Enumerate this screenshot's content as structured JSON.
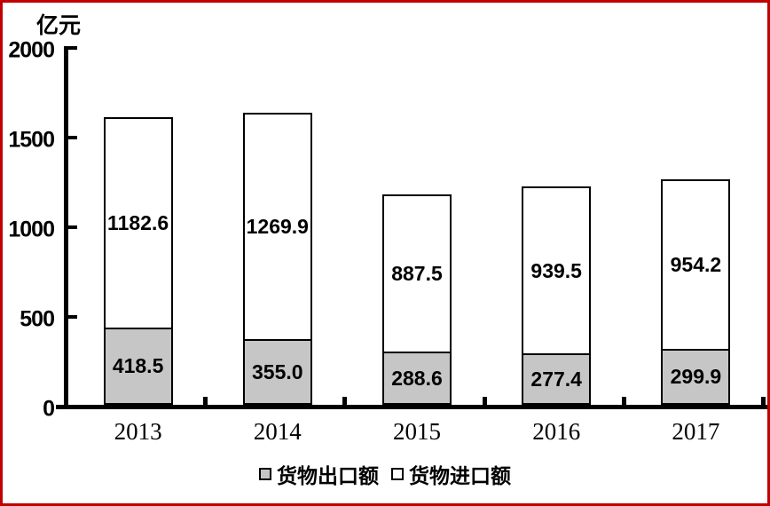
{
  "unit_label": "亿元",
  "colors": {
    "frame_border": "#c00000",
    "axis": "#000000",
    "bar_border": "#000000",
    "export_fill": "#c6c6c6",
    "import_fill": "#ffffff",
    "text": "#000000"
  },
  "chart_data": {
    "type": "bar",
    "stacked": true,
    "title": "",
    "xlabel": "",
    "ylabel": "亿元",
    "ylim": [
      0,
      2000
    ],
    "yticks": [
      0,
      500,
      1000,
      1500,
      2000
    ],
    "grid": false,
    "legend_position": "bottom",
    "categories": [
      "2013",
      "2014",
      "2015",
      "2016",
      "2017"
    ],
    "series": [
      {
        "name": "货物出口额",
        "color": "#c6c6c6",
        "values": [
          418.5,
          355.0,
          288.6,
          277.4,
          299.9
        ],
        "labels": [
          "418.5",
          "355.0",
          "288.6",
          "277.4",
          "299.9"
        ]
      },
      {
        "name": "货物进口额",
        "color": "#ffffff",
        "values": [
          1182.6,
          1269.9,
          887.5,
          939.5,
          954.2
        ],
        "labels": [
          "1182.6",
          "1269.9",
          "887.5",
          "939.5",
          "954.2"
        ]
      }
    ]
  },
  "legend": {
    "items": [
      {
        "label": "货物出口额",
        "swatch": "#c6c6c6"
      },
      {
        "label": "货物进口额",
        "swatch": "#ffffff"
      }
    ]
  }
}
